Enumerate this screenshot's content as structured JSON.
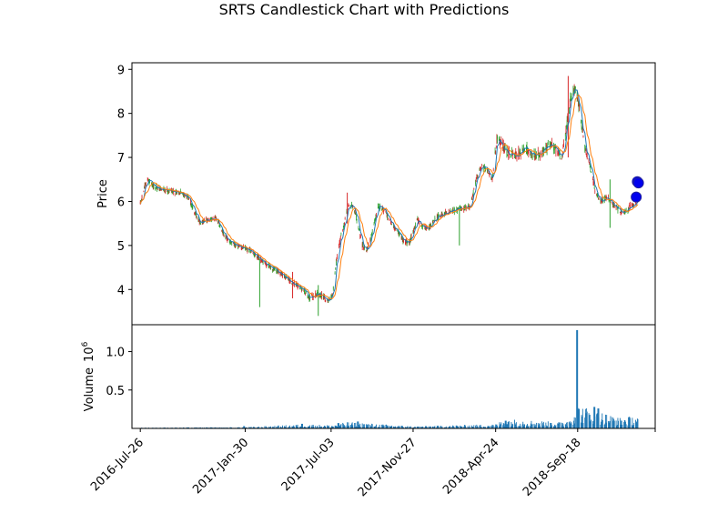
{
  "chart_data": {
    "type": "candlestick",
    "title": "SRTS Candlestick Chart with Predictions",
    "price_panel": {
      "ylabel": "Price",
      "ylim": [
        3.2,
        9.15
      ],
      "yticks": [
        4,
        5,
        6,
        7,
        8,
        9
      ],
      "up_color": "#2ca02c",
      "down_color": "#d62728",
      "moving_average_colors": [
        "#1f77b4",
        "#ff7f0e"
      ]
    },
    "volume_panel": {
      "ylabel": "Volume",
      "scale_label": "10^6",
      "scale_base": "10",
      "scale_exp": "6",
      "ylim": [
        0,
        1.35
      ],
      "yticks": [
        0.5,
        1.0
      ],
      "ytick_labels": [
        "0.5",
        "1.0"
      ],
      "bar_color": "#1f77b4"
    },
    "xlim": [
      "2016-07-11",
      "2019-02-04"
    ],
    "xticks": [
      {
        "date": "2016-07-26",
        "label": "2016-Jul-26"
      },
      {
        "date": "2017-01-30",
        "label": "2017-Jan-30"
      },
      {
        "date": "2017-07-03",
        "label": "2017-Jul-03"
      },
      {
        "date": "2017-11-27",
        "label": "2017-Nov-27"
      },
      {
        "date": "2018-04-24",
        "label": "2018-Apr-24"
      },
      {
        "date": "2018-09-18",
        "label": "2018-Sep-18"
      },
      {
        "date": "2019-02-04",
        "label": ""
      }
    ],
    "price_path": [
      [
        "2016-07-26",
        5.95
      ],
      [
        "2016-08-02",
        6.3
      ],
      [
        "2016-08-08",
        6.5
      ],
      [
        "2016-08-22",
        6.3
      ],
      [
        "2016-09-15",
        6.25
      ],
      [
        "2016-10-05",
        6.2
      ],
      [
        "2016-10-20",
        6.1
      ],
      [
        "2016-10-30",
        5.8
      ],
      [
        "2016-11-10",
        5.5
      ],
      [
        "2016-11-25",
        5.6
      ],
      [
        "2016-12-10",
        5.6
      ],
      [
        "2016-12-25",
        5.2
      ],
      [
        "2017-01-10",
        5.0
      ],
      [
        "2017-01-30",
        4.95
      ],
      [
        "2017-02-15",
        4.8
      ],
      [
        "2017-03-05",
        4.6
      ],
      [
        "2017-03-25",
        4.45
      ],
      [
        "2017-04-10",
        4.3
      ],
      [
        "2017-04-30",
        4.1
      ],
      [
        "2017-05-15",
        4.0
      ],
      [
        "2017-05-25",
        3.8
      ],
      [
        "2017-06-05",
        3.9
      ],
      [
        "2017-06-18",
        3.85
      ],
      [
        "2017-06-28",
        3.75
      ],
      [
        "2017-07-06",
        3.9
      ],
      [
        "2017-07-12",
        4.6
      ],
      [
        "2017-07-20",
        5.2
      ],
      [
        "2017-07-25",
        5.4
      ],
      [
        "2017-08-03",
        5.9
      ],
      [
        "2017-08-12",
        5.9
      ],
      [
        "2017-08-20",
        5.5
      ],
      [
        "2017-08-28",
        5.0
      ],
      [
        "2017-09-05",
        4.9
      ],
      [
        "2017-09-15",
        5.3
      ],
      [
        "2017-09-25",
        5.9
      ],
      [
        "2017-10-03",
        5.85
      ],
      [
        "2017-10-15",
        5.6
      ],
      [
        "2017-10-30",
        5.3
      ],
      [
        "2017-11-10",
        5.1
      ],
      [
        "2017-11-20",
        5.05
      ],
      [
        "2017-11-25",
        5.25
      ],
      [
        "2017-12-05",
        5.6
      ],
      [
        "2017-12-12",
        5.45
      ],
      [
        "2017-12-25",
        5.4
      ],
      [
        "2018-01-10",
        5.65
      ],
      [
        "2018-01-25",
        5.75
      ],
      [
        "2018-02-10",
        5.8
      ],
      [
        "2018-02-28",
        5.85
      ],
      [
        "2018-03-10",
        5.9
      ],
      [
        "2018-03-20",
        6.5
      ],
      [
        "2018-03-30",
        6.8
      ],
      [
        "2018-04-10",
        6.7
      ],
      [
        "2018-04-18",
        6.5
      ],
      [
        "2018-04-26",
        7.4
      ],
      [
        "2018-05-05",
        7.3
      ],
      [
        "2018-05-15",
        7.1
      ],
      [
        "2018-05-30",
        7.05
      ],
      [
        "2018-06-15",
        7.2
      ],
      [
        "2018-06-30",
        7.05
      ],
      [
        "2018-07-15",
        7.1
      ],
      [
        "2018-07-30",
        7.3
      ],
      [
        "2018-08-10",
        7.2
      ],
      [
        "2018-08-20",
        7.0
      ],
      [
        "2018-08-28",
        7.6
      ],
      [
        "2018-09-05",
        8.3
      ],
      [
        "2018-09-15",
        8.6
      ],
      [
        "2018-09-22",
        8.0
      ],
      [
        "2018-10-01",
        7.2
      ],
      [
        "2018-10-10",
        6.8
      ],
      [
        "2018-10-20",
        6.2
      ],
      [
        "2018-10-30",
        6.0
      ],
      [
        "2018-11-10",
        6.1
      ],
      [
        "2018-11-20",
        5.95
      ],
      [
        "2018-12-01",
        5.8
      ],
      [
        "2018-12-12",
        5.75
      ],
      [
        "2018-12-22",
        5.9
      ],
      [
        "2018-12-30",
        5.95
      ],
      [
        "2019-01-05",
        6.05
      ]
    ],
    "price_spikes": [
      {
        "date": "2017-02-25",
        "low": 3.6,
        "high": 4.7
      },
      {
        "date": "2017-04-25",
        "low": 3.8,
        "high": 4.4
      },
      {
        "date": "2017-06-10",
        "low": 3.4,
        "high": 4.1
      },
      {
        "date": "2017-08-01",
        "low": 5.5,
        "high": 6.2
      },
      {
        "date": "2018-02-18",
        "low": 5.0,
        "high": 5.9
      },
      {
        "date": "2018-09-01",
        "low": 7.0,
        "high": 8.85
      },
      {
        "date": "2018-11-15",
        "low": 5.4,
        "high": 6.5
      }
    ],
    "predictions": [
      {
        "date": "2019-01-01",
        "price": 6.1
      },
      {
        "date": "2019-01-03",
        "price": 6.45
      },
      {
        "date": "2019-01-05",
        "price": 6.42
      }
    ],
    "prediction_color": "#0000ee",
    "volume_path": [
      [
        "2016-07-26",
        0.008
      ],
      [
        "2017-01-30",
        0.012
      ],
      [
        "2017-05-20",
        0.04
      ],
      [
        "2017-07-03",
        0.03
      ],
      [
        "2017-08-01",
        0.06
      ],
      [
        "2017-11-27",
        0.02
      ],
      [
        "2018-04-24",
        0.04
      ],
      [
        "2018-05-10",
        0.09
      ],
      [
        "2018-08-15",
        0.06
      ],
      [
        "2018-09-01",
        0.08
      ],
      [
        "2018-09-18",
        0.22
      ],
      [
        "2018-10-15",
        0.18
      ],
      [
        "2018-12-01",
        0.1
      ],
      [
        "2019-01-05",
        0.12
      ]
    ],
    "volume_spikes": [
      {
        "date": "2017-01-28",
        "value": 0.03
      },
      {
        "date": "2017-05-12",
        "value": 0.06
      },
      {
        "date": "2017-07-16",
        "value": 0.07
      },
      {
        "date": "2017-08-20",
        "value": 0.09
      },
      {
        "date": "2018-05-12",
        "value": 0.1
      },
      {
        "date": "2018-08-01",
        "value": 0.07
      },
      {
        "date": "2018-09-17",
        "value": 1.28
      },
      {
        "date": "2018-09-20",
        "value": 0.25
      },
      {
        "date": "2018-10-18",
        "value": 0.28
      },
      {
        "date": "2018-10-25",
        "value": 0.26
      }
    ]
  }
}
